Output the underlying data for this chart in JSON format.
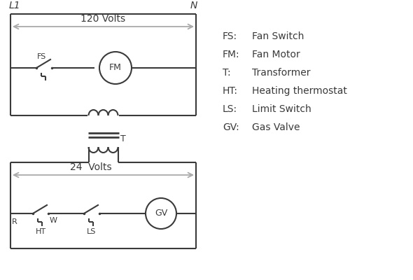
{
  "bg_color": "#ffffff",
  "line_color": "#3a3a3a",
  "gray_color": "#aaaaaa",
  "fig_w": 5.9,
  "fig_h": 4.0,
  "dpi": 100,
  "legend_items": [
    [
      "FS:",
      "Fan Switch"
    ],
    [
      "FM:",
      "Fan Motor"
    ],
    [
      "T:",
      "Transformer"
    ],
    [
      "HT:",
      "Heating thermostat"
    ],
    [
      "LS:",
      "Limit Switch"
    ],
    [
      "GV:",
      "Gas Valve"
    ]
  ],
  "label_120v": "120 Volts",
  "label_24v": "24  Volts",
  "label_L1": "L1",
  "label_N": "N",
  "label_T": "T",
  "label_R": "R",
  "label_W": "W",
  "label_HT": "HT",
  "label_LS": "LS",
  "label_FS": "FS"
}
